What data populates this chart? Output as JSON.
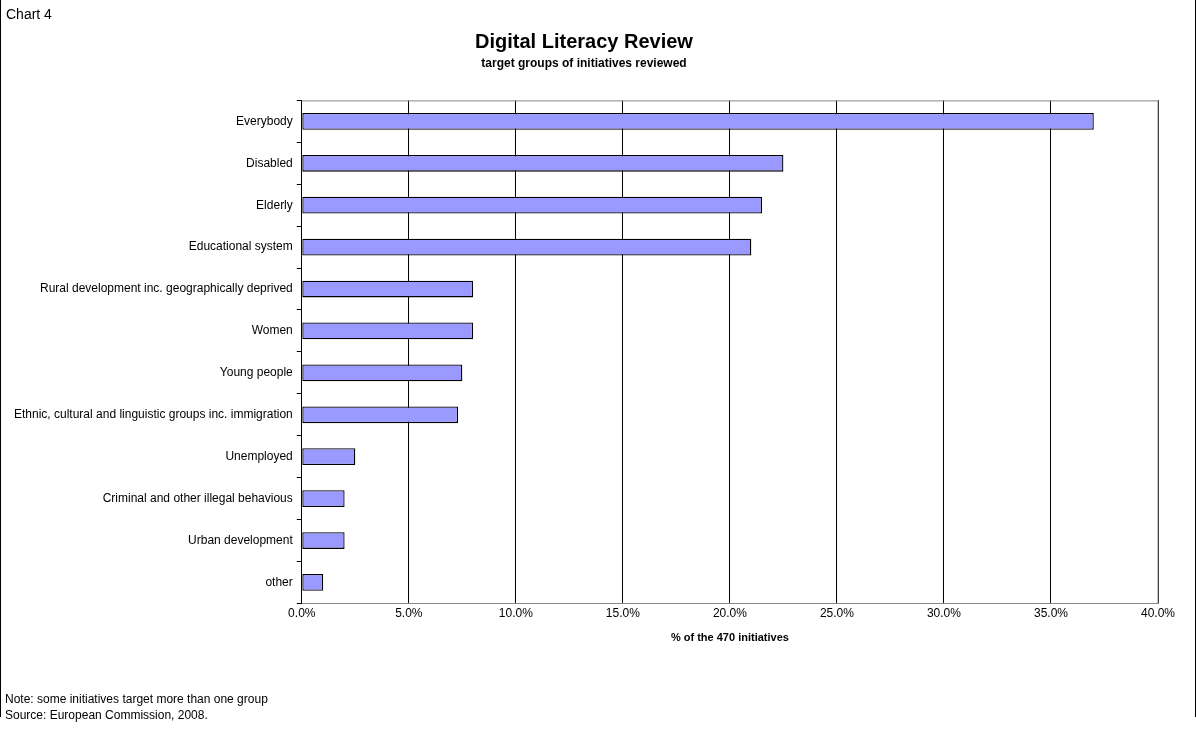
{
  "chart_data": {
    "type": "bar",
    "orientation": "horizontal",
    "title": "Digital Literacy Review",
    "subtitle": "target groups of initiatives reviewed",
    "xlabel": "% of the 470 initiatives",
    "categories": [
      "Everybody",
      "Disabled",
      "Elderly",
      "Educational system",
      "Rural development inc. geographically deprived",
      "Women",
      "Young people",
      "Ethnic, cultural and linguistic groups inc. immigration",
      "Unemployed",
      "Criminal and other illegal behavious",
      "Urban development",
      "other"
    ],
    "values": [
      37.0,
      22.5,
      21.5,
      21.0,
      8.0,
      8.0,
      7.5,
      7.3,
      2.5,
      2.0,
      2.0,
      1.0
    ],
    "color": "#9999ff",
    "xlim": [
      0,
      40
    ],
    "xticks": [
      {
        "value": 0,
        "label": "0.0%"
      },
      {
        "value": 5,
        "label": "5.0%"
      },
      {
        "value": 10,
        "label": "10.0%"
      },
      {
        "value": 15,
        "label": "15.0%"
      },
      {
        "value": 20,
        "label": "20.0%"
      },
      {
        "value": 25,
        "label": "25.0%"
      },
      {
        "value": 30,
        "label": "30.0%"
      },
      {
        "value": 35,
        "label": "35.0%"
      },
      {
        "value": 40,
        "label": "40.0%"
      }
    ],
    "grid": "x",
    "legend": false,
    "annotations": [
      "Chart 4",
      "Note: some initiatives target more than one group",
      "Source: European Commission, 2008."
    ]
  }
}
